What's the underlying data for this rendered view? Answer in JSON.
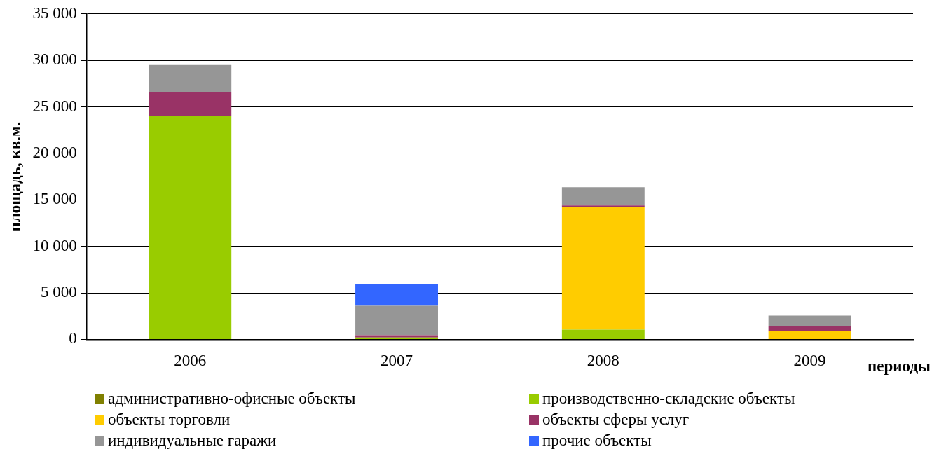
{
  "chart_data": {
    "type": "bar",
    "stacked": true,
    "categories": [
      "2006",
      "2007",
      "2008",
      "2009"
    ],
    "xlabel": "периоды",
    "ylabel": "площадь, кв.м.",
    "series": [
      {
        "name": "административно-офисные объекты",
        "color": "#808000",
        "values": [
          0,
          0,
          0,
          0
        ]
      },
      {
        "name": "производственно-складские объекты",
        "color": "#99cc00",
        "values": [
          24000,
          200,
          1050,
          null
        ]
      },
      {
        "name": "объекты торговли",
        "color": "#ffcc00",
        "values": [
          0,
          0,
          13200,
          850
        ]
      },
      {
        "name": "объекты сферы услуг",
        "color": "#993366",
        "values": [
          2600,
          250,
          150,
          550
        ]
      },
      {
        "name": "индивидуальные гаражи",
        "color": "#969696",
        "values": [
          2900,
          3150,
          1950,
          1150
        ]
      },
      {
        "name": "прочие объекты",
        "color": "#3366ff",
        "values": [
          0,
          2300,
          0,
          0
        ]
      }
    ],
    "ylim": [
      0,
      35000
    ],
    "yticks": [
      {
        "value": 0,
        "label": "0"
      },
      {
        "value": 5000,
        "label": "5 000"
      },
      {
        "value": 10000,
        "label": "10 000"
      },
      {
        "value": 15000,
        "label": "15 000"
      },
      {
        "value": 20000,
        "label": "20 000"
      },
      {
        "value": 25000,
        "label": "25 000"
      },
      {
        "value": 30000,
        "label": "30 000"
      },
      {
        "value": 35000,
        "label": "35 000"
      }
    ],
    "grid": "y",
    "legend": "bottom"
  }
}
